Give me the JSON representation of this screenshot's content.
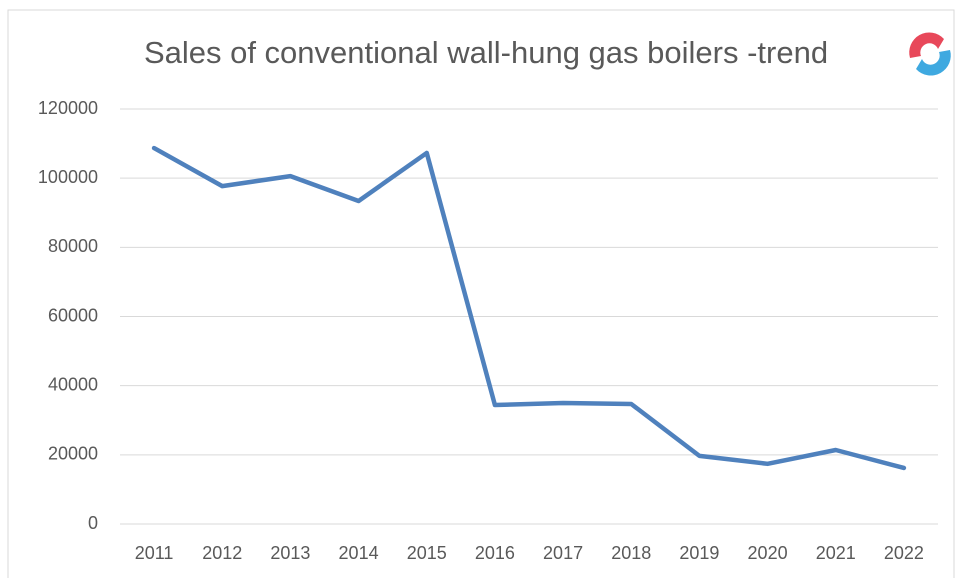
{
  "chart_data": {
    "type": "line",
    "title": "Sales of conventional wall-hung gas boilers -trend",
    "categories": [
      "2011",
      "2012",
      "2013",
      "2014",
      "2015",
      "2016",
      "2017",
      "2018",
      "2019",
      "2020",
      "2021",
      "2022"
    ],
    "series": [
      {
        "name": "Sales",
        "color": "#4f81bd",
        "values": [
          108700,
          97700,
          100600,
          93400,
          107300,
          34400,
          35000,
          34700,
          19700,
          17400,
          21400,
          16200
        ]
      }
    ],
    "ylim": [
      0,
      120000
    ],
    "yticks": [
      0,
      20000,
      40000,
      60000,
      80000,
      100000,
      120000
    ],
    "grid": true,
    "legend": false
  }
}
